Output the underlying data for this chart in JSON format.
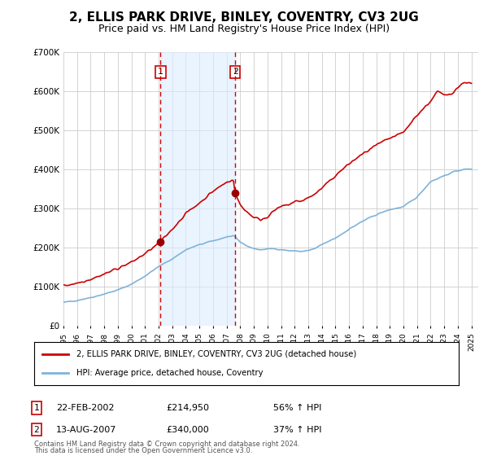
{
  "title": "2, ELLIS PARK DRIVE, BINLEY, COVENTRY, CV3 2UG",
  "subtitle": "Price paid vs. HM Land Registry's House Price Index (HPI)",
  "title_fontsize": 11,
  "subtitle_fontsize": 9,
  "ylim": [
    0,
    700000
  ],
  "yticks": [
    0,
    100000,
    200000,
    300000,
    400000,
    500000,
    600000,
    700000
  ],
  "ytick_labels": [
    "£0",
    "£100K",
    "£200K",
    "£300K",
    "£400K",
    "£500K",
    "£600K",
    "£700K"
  ],
  "sale1_date_num": 2002.14,
  "sale1_price": 214950,
  "sale1_label": "1",
  "sale1_date_str": "22-FEB-2002",
  "sale1_price_str": "£214,950",
  "sale1_hpi_pct": "56% ↑ HPI",
  "sale2_date_num": 2007.62,
  "sale2_price": 340000,
  "sale2_label": "2",
  "sale2_date_str": "13-AUG-2007",
  "sale2_price_str": "£340,000",
  "sale2_hpi_pct": "37% ↑ HPI",
  "hpi_line_color": "#7fb3d9",
  "price_line_color": "#cc0000",
  "sale_marker_color": "#990000",
  "sale_box_color": "#cc0000",
  "vline_color": "#cc0000",
  "shade_color": "#ddeeff",
  "grid_color": "#cccccc",
  "background_color": "#ffffff",
  "legend_label_price": "2, ELLIS PARK DRIVE, BINLEY, COVENTRY, CV3 2UG (detached house)",
  "legend_label_hpi": "HPI: Average price, detached house, Coventry",
  "footer1": "Contains HM Land Registry data © Crown copyright and database right 2024.",
  "footer2": "This data is licensed under the Open Government Licence v3.0."
}
